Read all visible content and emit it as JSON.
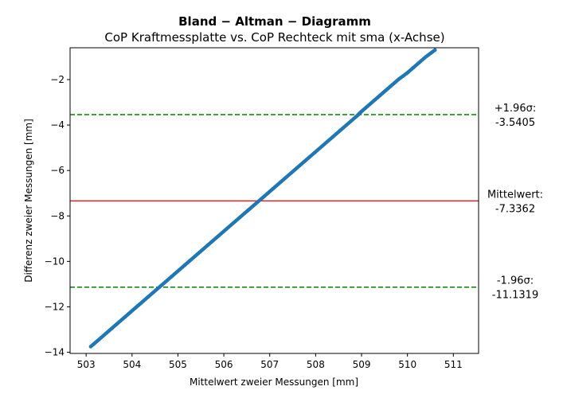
{
  "chart_data": {
    "type": "scatter",
    "title": "Bland − Altman − Diagramm",
    "subtitle": "CoP Kraftmessplatte vs. CoP Rechteck mit sma (x-Achse)",
    "xlabel": "Mittelwert zweier Messungen [mm]",
    "ylabel": "Differenz zweier Messungen [mm]",
    "xlim": [
      502.65,
      511.55
    ],
    "ylim": [
      -14.05,
      -0.6
    ],
    "xticks": [
      503,
      504,
      505,
      506,
      507,
      508,
      509,
      510,
      511
    ],
    "yticks": [
      -14,
      -12,
      -10,
      -8,
      -6,
      -4,
      -2
    ],
    "point_color": "#1f77b4",
    "series": [
      {
        "points": [
          [
            503.1,
            -13.75
          ],
          [
            503.3,
            -13.4
          ],
          [
            503.5,
            -13.05
          ],
          [
            503.7,
            -12.7
          ],
          [
            503.9,
            -12.35
          ],
          [
            504.1,
            -12.0
          ],
          [
            504.3,
            -11.65
          ],
          [
            504.5,
            -11.3
          ],
          [
            504.7,
            -10.95
          ],
          [
            504.9,
            -10.6
          ],
          [
            505.1,
            -10.25
          ],
          [
            505.3,
            -9.9
          ],
          [
            505.5,
            -9.55
          ],
          [
            505.7,
            -9.2
          ],
          [
            505.9,
            -8.85
          ],
          [
            506.1,
            -8.5
          ],
          [
            506.3,
            -8.15
          ],
          [
            506.5,
            -7.8
          ],
          [
            506.7,
            -7.45
          ],
          [
            506.9,
            -7.1
          ],
          [
            507.1,
            -6.75
          ],
          [
            507.3,
            -6.4
          ],
          [
            507.5,
            -6.05
          ],
          [
            507.7,
            -5.7
          ],
          [
            507.9,
            -5.35
          ],
          [
            508.1,
            -5.0
          ],
          [
            508.3,
            -4.65
          ],
          [
            508.5,
            -4.3
          ],
          [
            508.7,
            -3.95
          ],
          [
            508.9,
            -3.6
          ],
          [
            509.0,
            -3.4
          ],
          [
            509.2,
            -3.05
          ],
          [
            509.4,
            -2.7
          ],
          [
            509.6,
            -2.35
          ],
          [
            509.8,
            -2.0
          ],
          [
            510.0,
            -1.7
          ],
          [
            510.2,
            -1.35
          ],
          [
            510.4,
            -1.0
          ],
          [
            510.6,
            -0.7
          ]
        ]
      }
    ],
    "lines": [
      {
        "kind": "mean",
        "value": -7.3362,
        "color": "#d62728",
        "style": "solid",
        "label_line1": "Mittelwert:",
        "label_line2": "-7.3362"
      },
      {
        "kind": "upper",
        "value": -3.5405,
        "color": "#008000",
        "style": "dashed",
        "label_line1": "+1.96σ:",
        "label_line2": "-3.5405"
      },
      {
        "kind": "lower",
        "value": -11.1319,
        "color": "#008000",
        "style": "dashed",
        "label_line1": "-1.96σ:",
        "label_line2": "-11.1319"
      }
    ]
  }
}
